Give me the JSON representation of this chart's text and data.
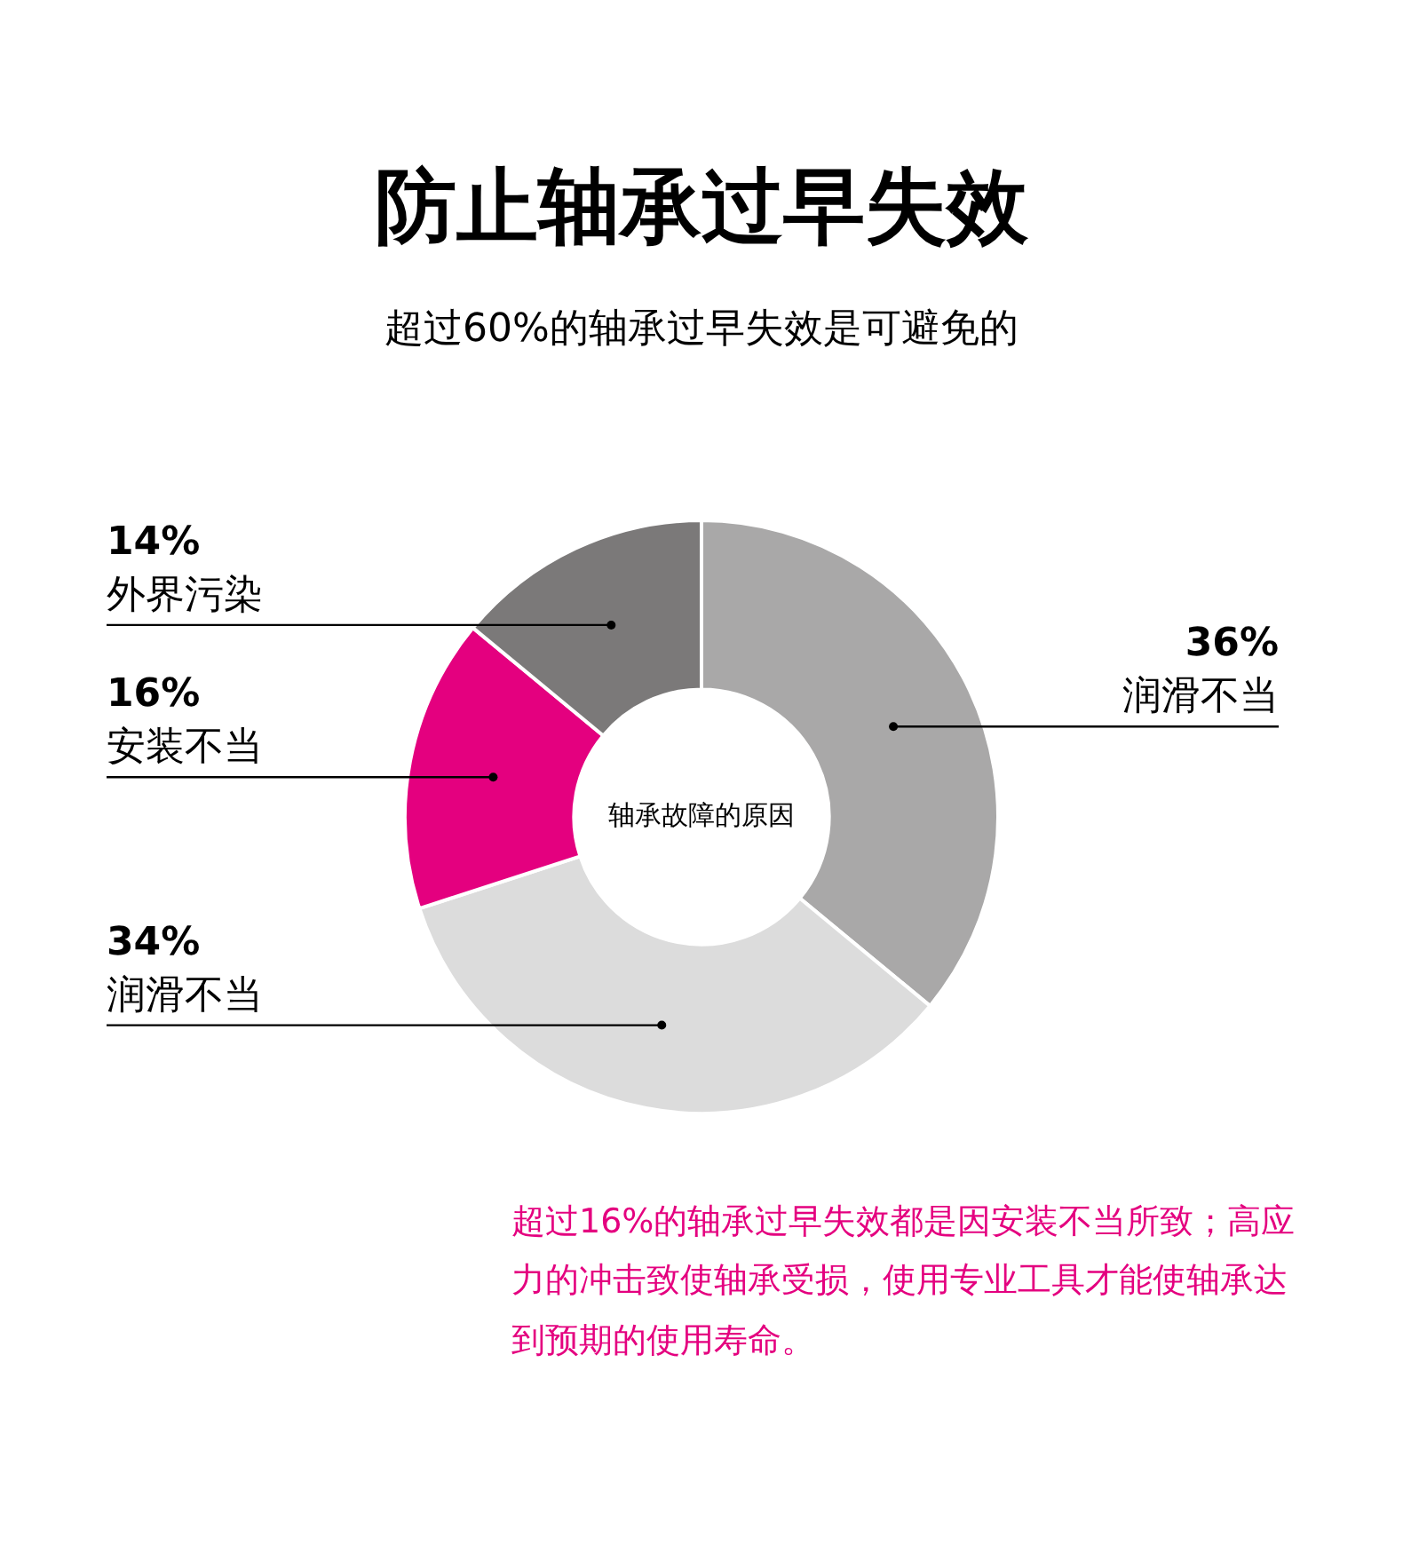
{
  "chart_data": {
    "type": "donut",
    "title": "防止轴承过早失效",
    "subtitle": "超过60%的轴承过早失效是可避免的",
    "categories": [
      "润滑不当",
      "润滑不当",
      "安装不当",
      "外界污染"
    ],
    "values": [
      36,
      34,
      16,
      14
    ],
    "value_labels": [
      "36%",
      "34%",
      "16%",
      "14%"
    ],
    "colors": [
      "#a9a8a8",
      "#dcdcdc",
      "#e4007f",
      "#7b7979"
    ],
    "annotations": [
      "轴承故障的原因",
      "超过16%的轴承过早失效都是因安装不当所致；高应力的冲击致使轴承受损，使用专业工具才能使轴承达到预期的使用寿命。"
    ],
    "legend": false
  }
}
